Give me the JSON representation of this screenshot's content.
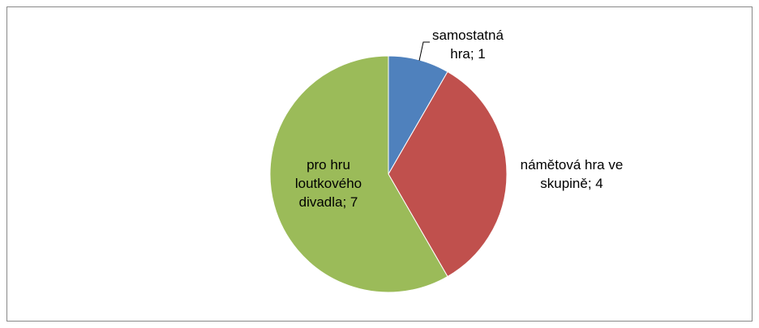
{
  "chart_data": {
    "type": "pie",
    "values": [
      1,
      4,
      7
    ],
    "value_labels": [
      "samostatná hra; 1",
      "námětová hra ve skupině; 4",
      "pro hru loutkového divadla; 7"
    ],
    "colors": [
      "#4f81bd",
      "#c0504d",
      "#9bbb59"
    ]
  }
}
